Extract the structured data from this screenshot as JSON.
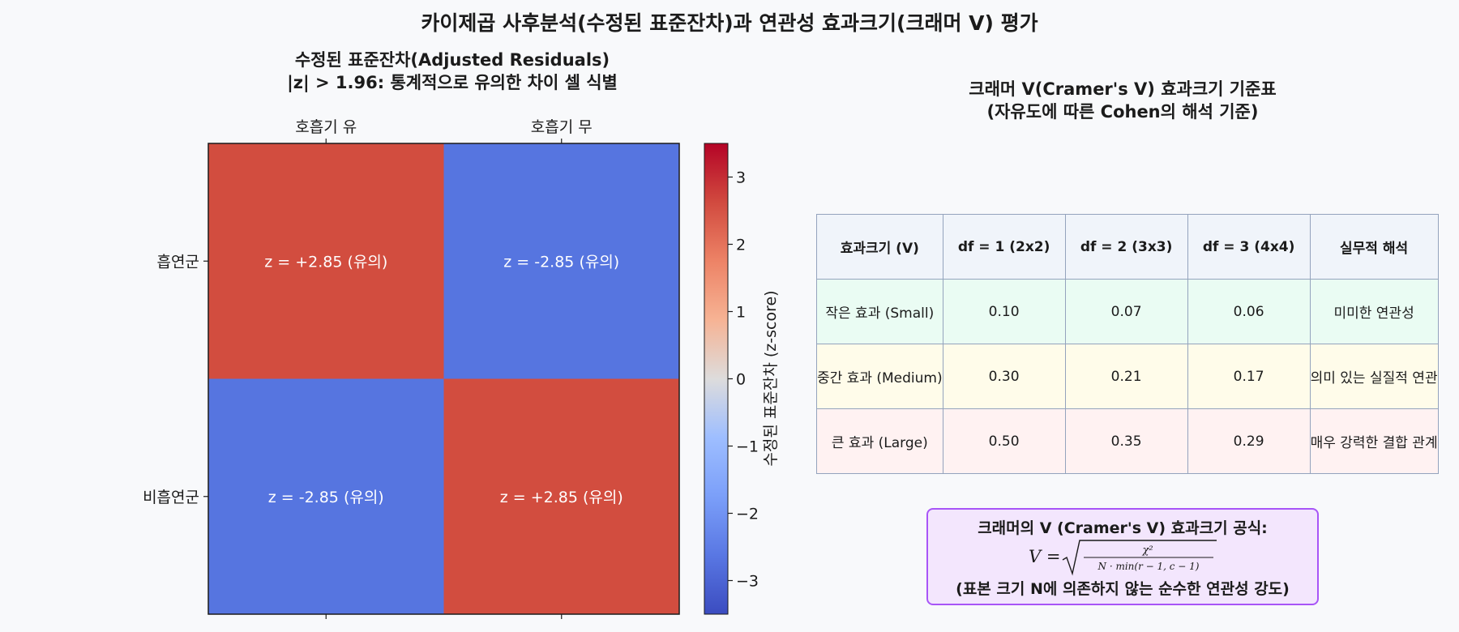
{
  "figure_title": "카이제곱 사후분석(수정된 표준잔차)과 연관성 효과크기(크래머 V) 평가",
  "heatmap": {
    "title_line1": "수정된 표준잔차(Adjusted Residuals)",
    "title_line2": "|z| > 1.96: 통계적으로 유의한 차이 셀 식별",
    "colorbar_label": "수정된 표준잔차 (z-score)",
    "colormap": "coolwarm",
    "vmin": -3.5,
    "vmax": 3.5,
    "colorbar_ticks": [
      -3,
      -2,
      -1,
      0,
      1,
      2,
      3
    ],
    "colors": {
      "positive_cell": "#d24d3f",
      "negative_cell": "#5675e0"
    }
  },
  "chart_data": {
    "type": "heatmap",
    "x_categories": [
      "호흡기 유",
      "호흡기 무"
    ],
    "y_categories": [
      "흡연군",
      "비흡연군"
    ],
    "values": [
      [
        2.85,
        -2.85
      ],
      [
        -2.85,
        2.85
      ]
    ],
    "cell_labels": [
      [
        "z = +2.85 (유의)",
        "z = -2.85 (유의)"
      ],
      [
        "z = -2.85 (유의)",
        "z = +2.85 (유의)"
      ]
    ],
    "colorbar_range": [
      -3.5,
      3.5
    ]
  },
  "table_panel": {
    "title_line1": "크래머 V(Cramer's V) 효과크기 기준표",
    "title_line2": "(자유도에 따른 Cohen의 해석 기준)",
    "header": [
      "효과크기 (V)",
      "df = 1 (2x2)",
      "df = 2 (3x3)",
      "df = 3 (4x4)",
      "실무적 해석"
    ],
    "rows": [
      [
        "작은 효과 (Small)",
        "0.10",
        "0.07",
        "0.06",
        "미미한 연관성"
      ],
      [
        "중간 효과 (Medium)",
        "0.30",
        "0.21",
        "0.17",
        "의미 있는 실질적 연관"
      ],
      [
        "큰 효과 (Large)",
        "0.50",
        "0.35",
        "0.29",
        "매우 강력한 결합 관계"
      ]
    ],
    "colors": {
      "header_bg": "#f0f4fa",
      "small_bg": "#eafcf3",
      "medium_bg": "#fffcea",
      "large_bg": "#fff2f2",
      "border": "#94a3bd"
    }
  },
  "formula_box": {
    "line1": "크래머의 V (Cramer's V) 효과크기 공식:",
    "lhs": "V =",
    "numerator": "χ²",
    "denominator": "N · min(r − 1, c − 1)",
    "line3": "(표본 크기 N에 의존하지 않는 순수한 연관성 강도)",
    "colors": {
      "border": "#a855f7",
      "background": "#f3e6fd"
    }
  }
}
